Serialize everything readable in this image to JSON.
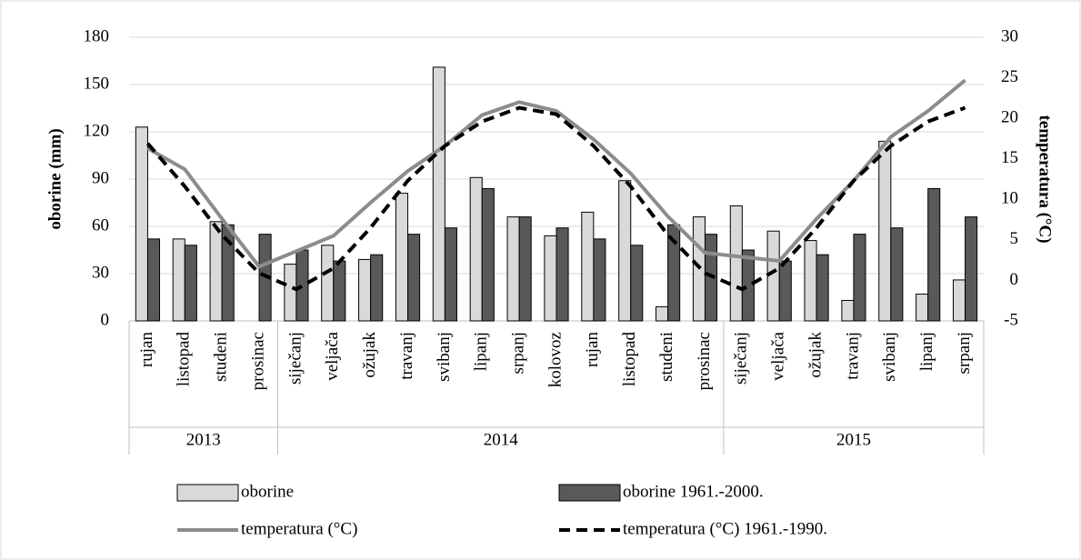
{
  "chart_data": {
    "type": "bar_line",
    "y_label": "oborine (mm)",
    "y2_label": "temperatura (°C)",
    "categories": [
      "rujan",
      "listopad",
      "studeni",
      "prosinac",
      "siječanj",
      "veljača",
      "ožujak",
      "travanj",
      "svibanj",
      "lipanj",
      "srpanj",
      "kolovoz",
      "rujan",
      "listopad",
      "studeni",
      "prosinac",
      "siječanj",
      "veljača",
      "ožujak",
      "travanj",
      "svibanj",
      "lipanj",
      "srpanj"
    ],
    "category_groups": [
      {
        "label": "2013",
        "size": 4
      },
      {
        "label": "2014",
        "size": 12
      },
      {
        "label": "2015",
        "size": 7
      }
    ],
    "ylim": [
      0,
      180
    ],
    "yticks": [
      0,
      30,
      60,
      90,
      120,
      150,
      180
    ],
    "y2lim": [
      -5,
      30
    ],
    "y2ticks": [
      -5,
      0,
      5,
      10,
      15,
      20,
      25,
      30
    ],
    "grid": true,
    "series": [
      {
        "name": "oborine",
        "type": "bar",
        "color": "#d9d9d9",
        "values": [
          123,
          52,
          63,
          null,
          36,
          48,
          39,
          81,
          161,
          91,
          66,
          54,
          69,
          89,
          9,
          66,
          73,
          57,
          51,
          13,
          114,
          17,
          26
        ]
      },
      {
        "name": "oborine 1961.-2000.",
        "type": "bar",
        "color": "#595959",
        "values": [
          52,
          48,
          61,
          55,
          45,
          38,
          42,
          55,
          59,
          84,
          66,
          59,
          52,
          48,
          61,
          55,
          45,
          38,
          42,
          55,
          59,
          84,
          66
        ]
      },
      {
        "name": "temperatura (°C)",
        "type": "line",
        "axis": "y2",
        "color": "#8c8c8c",
        "dashed": false,
        "values": [
          16.3,
          13.7,
          7.6,
          1.7,
          3.6,
          5.5,
          9.6,
          13.5,
          16.6,
          20.4,
          22.0,
          20.9,
          17.4,
          13.2,
          7.9,
          3.4,
          2.9,
          2.4,
          7.6,
          12.3,
          17.7,
          20.9,
          24.7
        ]
      },
      {
        "name": "temperatura (°C) 1961.-1990.",
        "type": "line",
        "axis": "y2",
        "color": "#000000",
        "dashed": true,
        "values": [
          16.9,
          11.6,
          5.6,
          0.9,
          -1.1,
          1.5,
          6.5,
          12.3,
          16.6,
          19.6,
          21.3,
          20.5,
          16.6,
          11.6,
          5.6,
          0.9,
          -1.1,
          1.5,
          6.5,
          12.3,
          16.6,
          19.6,
          21.3
        ]
      }
    ]
  }
}
